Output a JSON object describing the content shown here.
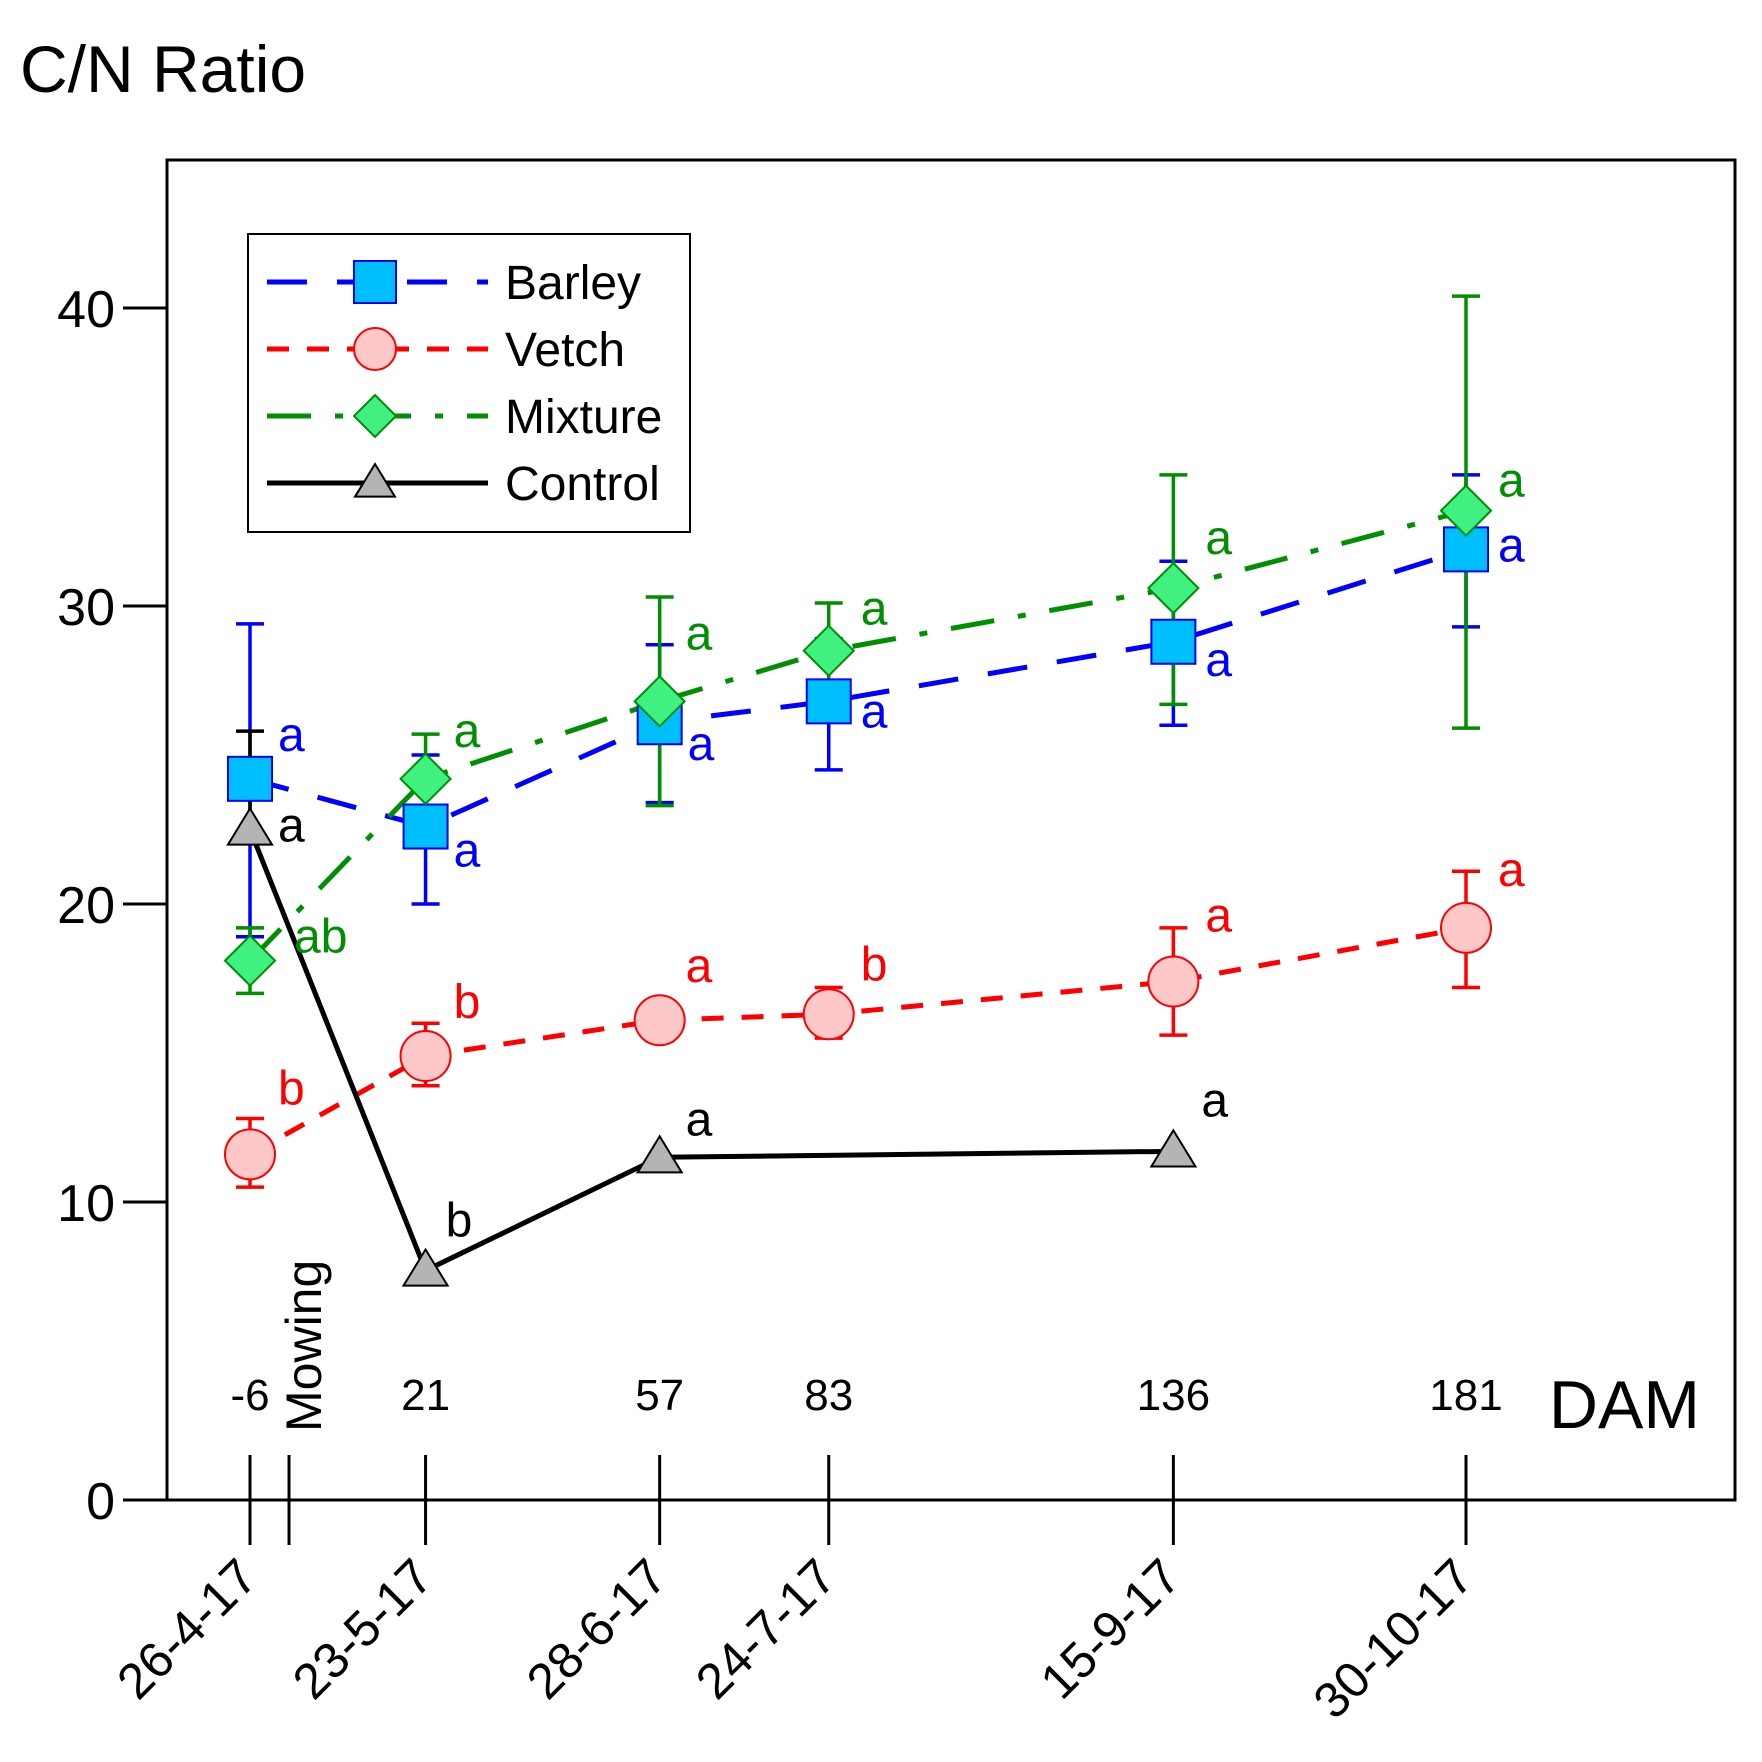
{
  "chart_data": {
    "type": "line",
    "title": "C/N Ratio",
    "xlabel": "",
    "ylabel": "",
    "ylim": [
      0,
      45
    ],
    "yticks": [
      0,
      10,
      20,
      30,
      40
    ],
    "y_tick_labels": [
      "0",
      "10",
      "20",
      "30",
      "40"
    ],
    "x_axis_unit": "DAM",
    "categories": [
      "26-4-17",
      "23-5-17",
      "28-6-17",
      "24-7-17",
      "15-9-17",
      "30-10-17"
    ],
    "dam": [
      -6,
      21,
      57,
      83,
      136,
      181
    ],
    "dam_labels": [
      "-6",
      "21",
      "57",
      "83",
      "136",
      "181"
    ],
    "x_range_dam": [
      -19,
      221
    ],
    "mowing": {
      "dam": 0,
      "label": "Mowing"
    },
    "legend": {
      "position": "top-left"
    },
    "series": [
      {
        "name": "Barley",
        "color": "#0000ff",
        "marker": "square",
        "marker_fill": "#00bfff",
        "dash": "long-dash",
        "values": [
          24.2,
          22.6,
          26.1,
          26.8,
          28.8,
          31.9
        ],
        "error_low": [
          18.9,
          20.0,
          23.4,
          24.5,
          26.0,
          29.3
        ],
        "error_high": [
          29.4,
          25.0,
          28.7,
          28.9,
          31.5,
          34.4
        ],
        "letters": [
          "a",
          "a",
          "a",
          "a",
          "a",
          "a"
        ]
      },
      {
        "name": "Vetch",
        "color": "#ff0000",
        "marker": "circle",
        "marker_fill": "#ffc8c8",
        "dash": "short-dash",
        "values": [
          11.6,
          14.9,
          16.1,
          16.3,
          17.4,
          19.2
        ],
        "error_low": [
          10.5,
          13.9,
          15.4,
          15.5,
          15.6,
          17.2
        ],
        "error_high": [
          12.8,
          16.0,
          16.6,
          17.2,
          19.2,
          21.1
        ],
        "letters": [
          "b",
          "b",
          "a",
          "b",
          "a",
          "a"
        ]
      },
      {
        "name": "Mixture",
        "color": "#008f00",
        "marker": "diamond",
        "marker_fill": "#40f080",
        "dash": "dash-dot",
        "values": [
          18.1,
          24.2,
          26.8,
          28.5,
          30.6,
          33.2
        ],
        "error_low": [
          17.0,
          22.7,
          23.3,
          26.8,
          26.7,
          25.9
        ],
        "error_high": [
          19.2,
          25.7,
          30.3,
          30.1,
          34.4,
          40.4
        ],
        "letters": [
          "ab",
          "a",
          "a",
          "a",
          "a",
          "a"
        ]
      },
      {
        "name": "Control",
        "color": "#000000",
        "marker": "triangle",
        "marker_fill": "#b4b4b4",
        "dash": "solid",
        "values": [
          22.5,
          7.7,
          11.5,
          null,
          11.7,
          null
        ],
        "error_low": [
          null,
          null,
          null,
          null,
          null,
          null
        ],
        "error_high": [
          25.8,
          null,
          null,
          null,
          null,
          null
        ],
        "letters": [
          "a",
          "b",
          "a",
          null,
          "a",
          null
        ]
      }
    ]
  }
}
